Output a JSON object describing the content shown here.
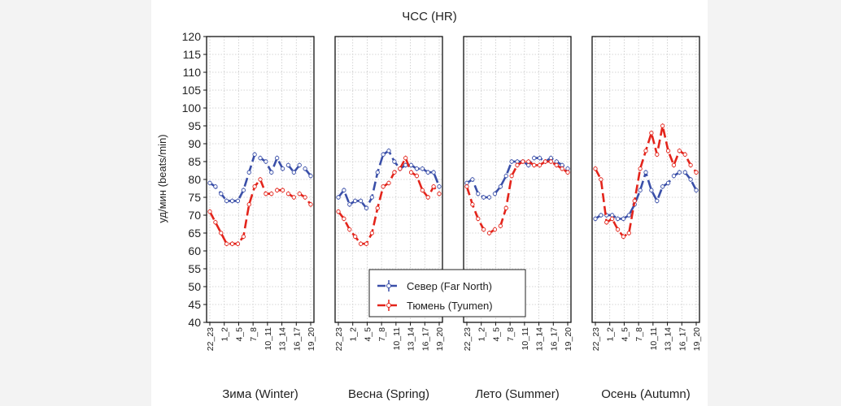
{
  "chart_data": {
    "type": "line",
    "title": "ЧСС (HR)",
    "ylabel": "уд/мин (beats/min)",
    "ylim": [
      40,
      120
    ],
    "yticks": [
      40,
      45,
      50,
      55,
      60,
      65,
      70,
      75,
      80,
      85,
      90,
      95,
      100,
      105,
      110,
      115,
      120
    ],
    "categories": [
      "22_23",
      "1_2",
      "4_5",
      "7_8",
      "10_11",
      "13_14",
      "16_17",
      "19_20"
    ],
    "grid": true,
    "legend": {
      "position": "center-bottom",
      "entries": [
        "Север (Far North)",
        "Тюмень (Tyumen)"
      ]
    },
    "panels": [
      {
        "label": "Зима (Winter)",
        "series": [
          {
            "name": "Север (Far North)",
            "color": "#3a4fa8",
            "values": [
              79,
              78,
              76,
              74,
              74,
              74,
              77,
              82,
              87,
              86,
              85,
              82,
              86,
              83,
              84,
              82,
              84,
              83,
              81
            ]
          },
          {
            "name": "Тюмень (Tyumen)",
            "color": "#e3241b",
            "values": [
              71,
              68,
              65,
              62,
              62,
              62,
              64,
              73,
              78,
              80,
              76,
              76,
              77,
              77,
              76,
              75,
              76,
              75,
              73
            ]
          }
        ]
      },
      {
        "label": "Весна (Spring)",
        "series": [
          {
            "name": "Север (Far North)",
            "color": "#3a4fa8",
            "values": [
              75,
              77,
              73,
              74,
              74,
              72,
              75,
              82,
              87,
              88,
              85,
              83,
              84,
              84,
              83,
              83,
              82,
              82,
              78
            ]
          },
          {
            "name": "Тюмень (Tyumen)",
            "color": "#e3241b",
            "values": [
              71,
              69,
              66,
              64,
              62,
              62,
              65,
              72,
              78,
              79,
              82,
              83,
              86,
              82,
              81,
              77,
              75,
              78,
              76
            ]
          }
        ]
      },
      {
        "label": "Лето (Summer)",
        "series": [
          {
            "name": "Север (Far North)",
            "color": "#3a4fa8",
            "values": [
              79,
              80,
              76,
              75,
              75,
              76,
              78,
              81,
              85,
              85,
              85,
              84,
              86,
              86,
              85,
              86,
              85,
              84,
              83
            ]
          },
          {
            "name": "Тюмень (Tyumen)",
            "color": "#e3241b",
            "values": [
              78,
              73,
              69,
              66,
              65,
              66,
              67,
              72,
              81,
              84,
              85,
              85,
              84,
              84,
              85,
              85,
              84,
              83,
              82
            ]
          }
        ]
      },
      {
        "label": "Осень (Autumn)",
        "series": [
          {
            "name": "Север (Far North)",
            "color": "#3a4fa8",
            "values": [
              69,
              70,
              70,
              70,
              69,
              69,
              70,
              73,
              77,
              82,
              77,
              74,
              78,
              79,
              81,
              82,
              82,
              80,
              77
            ]
          },
          {
            "name": "Тюмень (Tyumen)",
            "color": "#e3241b",
            "values": [
              83,
              80,
              68,
              69,
              66,
              64,
              65,
              74,
              83,
              88,
              93,
              87,
              95,
              88,
              84,
              88,
              87,
              84,
              82
            ]
          }
        ]
      }
    ]
  }
}
